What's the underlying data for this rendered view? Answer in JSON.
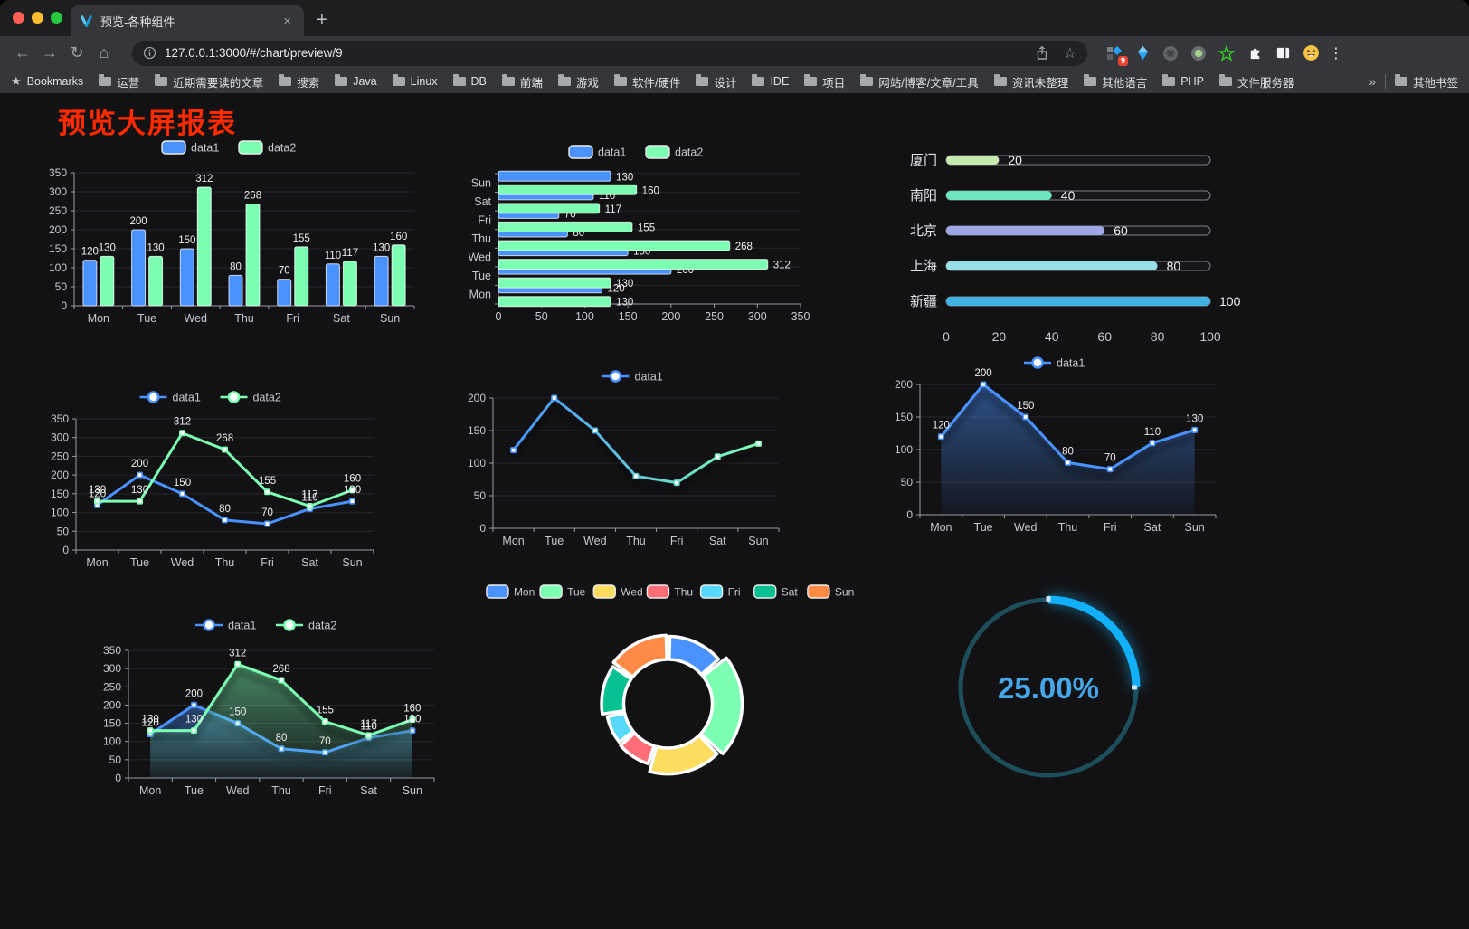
{
  "browser": {
    "tab_title": "预览-各种组件",
    "url": "127.0.0.1:3000/#/chart/preview/9",
    "bookmarks_label": "Bookmarks",
    "bookmarks": [
      "运营",
      "近期需要读的文章",
      "搜索",
      "Java",
      "Linux",
      "DB",
      "前端",
      "游戏",
      "软件/硬件",
      "设计",
      "IDE",
      "项目",
      "网站/博客/文章/工具",
      "资讯未整理",
      "其他语言",
      "PHP",
      "文件服务器"
    ],
    "other_bookmarks": "其他书签",
    "extension_badge": "9",
    "icons": {
      "close": "×",
      "new_tab": "+",
      "back": "←",
      "forward": "→",
      "reload": "↻",
      "home": "⌂",
      "star": "☆",
      "bookmark_star": "★",
      "overflow": "»",
      "menu": "⋮"
    }
  },
  "page": {
    "title": "预览大屏报表",
    "title_color": "#ff2a00"
  },
  "colors": {
    "series_blue": "#4992ff",
    "series_green": "#7cffb2",
    "axis": "#9b9ba6",
    "label": "#c8c8d0",
    "value_label": "#f0f0f2",
    "grid": "rgba(255,255,255,0.09)",
    "page_bg": "#121215"
  },
  "chart_data": [
    {
      "id": "grouped-bar",
      "type": "bar",
      "legend": true,
      "value_labels": true,
      "categories": [
        "Mon",
        "Tue",
        "Wed",
        "Thu",
        "Fri",
        "Sat",
        "Sun"
      ],
      "series": [
        {
          "name": "data1",
          "color": "#4992ff",
          "values": [
            120,
            200,
            150,
            80,
            70,
            110,
            130
          ]
        },
        {
          "name": "data2",
          "color": "#7cffb2",
          "values": [
            130,
            130,
            312,
            268,
            155,
            117,
            160
          ]
        }
      ],
      "ylim": [
        0,
        350
      ],
      "ytick_step": 50,
      "grid": true,
      "legend_position": "top"
    },
    {
      "id": "horizontal-bar",
      "type": "hbar",
      "legend": true,
      "value_labels": true,
      "categories": [
        "Mon",
        "Tue",
        "Wed",
        "Thu",
        "Fri",
        "Sat",
        "Sun"
      ],
      "series": [
        {
          "name": "data1",
          "color": "#4992ff",
          "values": [
            120,
            200,
            150,
            80,
            70,
            110,
            130
          ]
        },
        {
          "name": "data2",
          "color": "#7cffb2",
          "values": [
            130,
            130,
            312,
            268,
            155,
            117,
            160
          ]
        }
      ],
      "xlim": [
        0,
        350
      ],
      "xticks": [
        0,
        50,
        100,
        150,
        200,
        250,
        300,
        350
      ],
      "grid": true
    },
    {
      "id": "progress-bars",
      "type": "progress",
      "max": 100,
      "items": [
        {
          "label": "厦门",
          "value": 20,
          "color": "#c4ebad"
        },
        {
          "label": "南阳",
          "value": 40,
          "color": "#6be6c1"
        },
        {
          "label": "北京",
          "value": 60,
          "color": "#a0a7e6"
        },
        {
          "label": "上海",
          "value": 80,
          "color": "#96dee8"
        },
        {
          "label": "新疆",
          "value": 100,
          "color": "#3fb1e3"
        }
      ],
      "xticks": [
        0,
        20,
        40,
        60,
        80,
        100
      ]
    },
    {
      "id": "line-two-series",
      "type": "line",
      "legend": true,
      "value_labels": true,
      "categories": [
        "Mon",
        "Tue",
        "Wed",
        "Thu",
        "Fri",
        "Sat",
        "Sun"
      ],
      "series": [
        {
          "name": "data1",
          "color": "#4992ff",
          "values": [
            120,
            200,
            150,
            80,
            70,
            110,
            130
          ]
        },
        {
          "name": "data2",
          "color": "#7cffb2",
          "values": [
            130,
            130,
            312,
            268,
            155,
            117,
            160
          ]
        }
      ],
      "ylim": [
        0,
        350
      ],
      "ytick_step": 50,
      "grid": true
    },
    {
      "id": "line-gradient",
      "type": "line",
      "legend": true,
      "value_labels": false,
      "shadow": true,
      "categories": [
        "Mon",
        "Tue",
        "Wed",
        "Thu",
        "Fri",
        "Sat",
        "Sun"
      ],
      "series": [
        {
          "name": "data1",
          "gradient": [
            "#4992ff",
            "#7cffb2"
          ],
          "values": [
            120,
            200,
            150,
            80,
            70,
            110,
            130
          ]
        }
      ],
      "ylim": [
        0,
        200
      ],
      "ytick_step": 50,
      "grid": true
    },
    {
      "id": "line-area",
      "type": "line",
      "legend": true,
      "value_labels": true,
      "shadow": true,
      "categories": [
        "Mon",
        "Tue",
        "Wed",
        "Thu",
        "Fri",
        "Sat",
        "Sun"
      ],
      "series": [
        {
          "name": "data1",
          "color": "#4992ff",
          "area": true,
          "values": [
            120,
            200,
            150,
            80,
            70,
            110,
            130
          ]
        }
      ],
      "ylim": [
        0,
        200
      ],
      "ytick_step": 50,
      "grid": true
    },
    {
      "id": "line-two-area",
      "type": "line",
      "legend": true,
      "value_labels": true,
      "shadow": true,
      "categories": [
        "Mon",
        "Tue",
        "Wed",
        "Thu",
        "Fri",
        "Sat",
        "Sun"
      ],
      "series": [
        {
          "name": "data1",
          "color": "#4992ff",
          "area": true,
          "values": [
            120,
            200,
            150,
            80,
            70,
            110,
            130
          ]
        },
        {
          "name": "data2",
          "color": "#7cffb2",
          "area": true,
          "values": [
            130,
            130,
            312,
            268,
            155,
            117,
            160
          ]
        }
      ],
      "ylim": [
        0,
        350
      ],
      "ytick_step": 50,
      "grid": true
    },
    {
      "id": "rose-donut",
      "type": "pie",
      "rose": "area",
      "inner_radius": 49,
      "outer_radius": 82,
      "labels": [
        "Mon",
        "Tue",
        "Wed",
        "Thu",
        "Fri",
        "Sat",
        "Sun"
      ],
      "values": [
        120,
        200,
        150,
        80,
        70,
        110,
        130
      ],
      "colors": [
        "#4992ff",
        "#7cffb2",
        "#fddd60",
        "#ff6e76",
        "#58d9f9",
        "#05c091",
        "#ff8a45"
      ],
      "legend_position": "top"
    },
    {
      "id": "ring-gauge",
      "type": "gauge",
      "value": 25,
      "label": "25.00%",
      "color": "#12b0f8",
      "track_color": "#1d4e5c",
      "text_color": "#46a6e8"
    }
  ]
}
